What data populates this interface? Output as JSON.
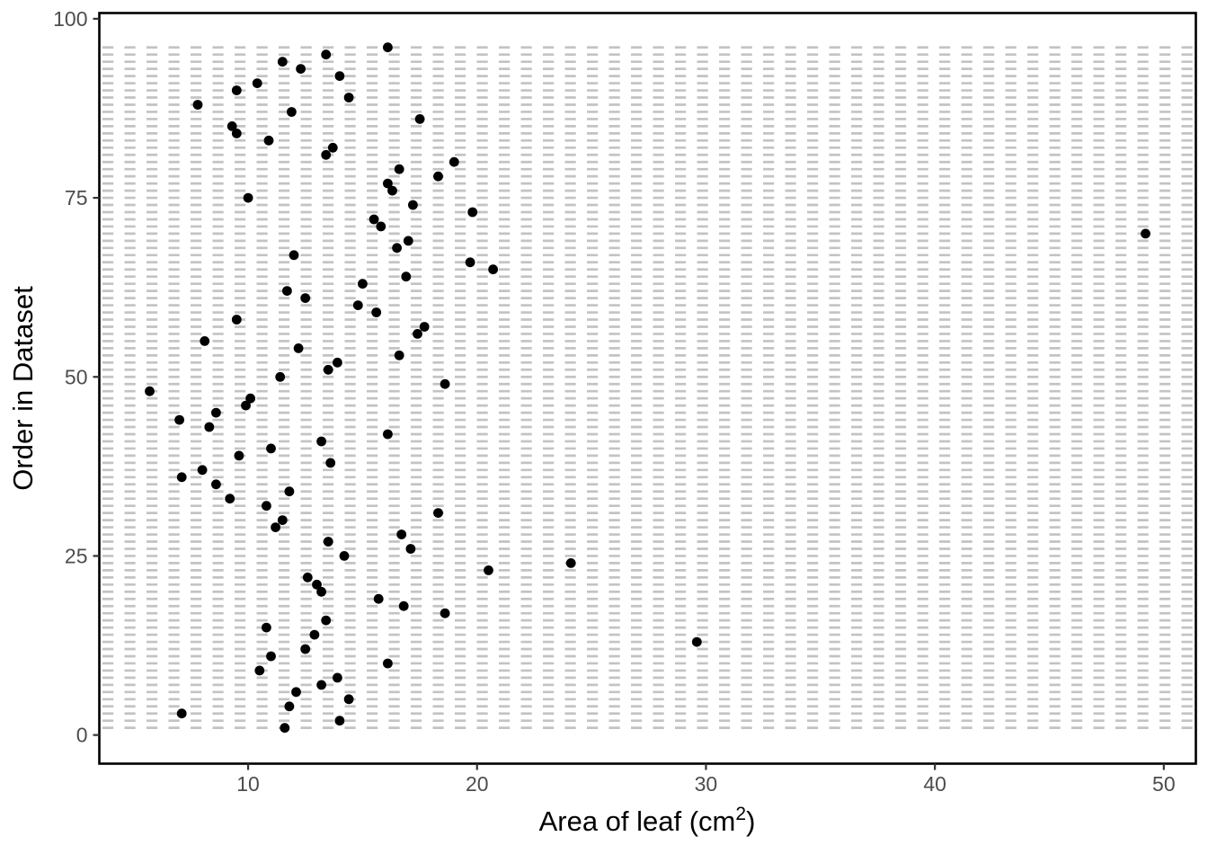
{
  "chart_data": {
    "type": "scatter",
    "title": "",
    "xlabel_prefix": "Area of leaf (cm",
    "xlabel_sup": "2",
    "xlabel_suffix": ")",
    "xlabel_plain": "Area of leaf (cm^2)",
    "ylabel": "Order in Dataset",
    "x_ticks": [
      10,
      20,
      30,
      40,
      50
    ],
    "y_ticks": [
      0,
      25,
      50,
      75,
      100
    ],
    "xlim": [
      3.5,
      51.4
    ],
    "ylim": [
      -4,
      100.8
    ],
    "grid": {
      "style": "dashed",
      "color": "#c3c3c3",
      "rows_y_from": 1,
      "rows_y_to": 96,
      "orientation": "horizontal"
    },
    "legend_position": "none",
    "point_color": "#000000",
    "point_radius": 5.4,
    "axis_text_color": "#4d4d4d",
    "axis_title_color": "#000000",
    "tick_mark_color": "#333333",
    "panel_border_color": "#000000",
    "background_color": "#ffffff",
    "points": [
      [
        11.6,
        1
      ],
      [
        14.0,
        2
      ],
      [
        7.1,
        3
      ],
      [
        11.8,
        4
      ],
      [
        14.4,
        5
      ],
      [
        12.1,
        6
      ],
      [
        13.2,
        7
      ],
      [
        13.9,
        8
      ],
      [
        10.5,
        9
      ],
      [
        16.1,
        10
      ],
      [
        11.0,
        11
      ],
      [
        12.5,
        12
      ],
      [
        29.6,
        13
      ],
      [
        12.9,
        14
      ],
      [
        10.8,
        15
      ],
      [
        13.4,
        16
      ],
      [
        18.6,
        17
      ],
      [
        16.8,
        18
      ],
      [
        15.7,
        19
      ],
      [
        13.2,
        20
      ],
      [
        13.0,
        21
      ],
      [
        12.6,
        22
      ],
      [
        20.5,
        23
      ],
      [
        24.1,
        24
      ],
      [
        14.2,
        25
      ],
      [
        17.1,
        26
      ],
      [
        13.5,
        27
      ],
      [
        16.7,
        28
      ],
      [
        11.2,
        29
      ],
      [
        11.5,
        30
      ],
      [
        18.3,
        31
      ],
      [
        10.8,
        32
      ],
      [
        9.2,
        33
      ],
      [
        11.8,
        34
      ],
      [
        8.6,
        35
      ],
      [
        7.1,
        36
      ],
      [
        8.0,
        37
      ],
      [
        13.6,
        38
      ],
      [
        9.6,
        39
      ],
      [
        11.0,
        40
      ],
      [
        13.2,
        41
      ],
      [
        16.1,
        42
      ],
      [
        8.3,
        43
      ],
      [
        7.0,
        44
      ],
      [
        8.6,
        45
      ],
      [
        9.9,
        46
      ],
      [
        10.1,
        47
      ],
      [
        5.7,
        48
      ],
      [
        18.6,
        49
      ],
      [
        11.4,
        50
      ],
      [
        13.5,
        51
      ],
      [
        13.9,
        52
      ],
      [
        16.6,
        53
      ],
      [
        12.2,
        54
      ],
      [
        8.1,
        55
      ],
      [
        17.4,
        56
      ],
      [
        17.7,
        57
      ],
      [
        9.5,
        58
      ],
      [
        15.6,
        59
      ],
      [
        14.8,
        60
      ],
      [
        12.5,
        61
      ],
      [
        11.7,
        62
      ],
      [
        15.0,
        63
      ],
      [
        16.9,
        64
      ],
      [
        20.7,
        65
      ],
      [
        19.7,
        66
      ],
      [
        12.0,
        67
      ],
      [
        16.5,
        68
      ],
      [
        17.0,
        69
      ],
      [
        49.2,
        70
      ],
      [
        15.8,
        71
      ],
      [
        15.5,
        72
      ],
      [
        19.8,
        73
      ],
      [
        17.2,
        74
      ],
      [
        10.0,
        75
      ],
      [
        16.3,
        76
      ],
      [
        16.1,
        77
      ],
      [
        18.3,
        78
      ],
      [
        16.6,
        79
      ],
      [
        19.0,
        80
      ],
      [
        13.4,
        81
      ],
      [
        13.7,
        82
      ],
      [
        10.9,
        83
      ],
      [
        9.5,
        84
      ],
      [
        9.3,
        85
      ],
      [
        17.5,
        86
      ],
      [
        11.9,
        87
      ],
      [
        7.8,
        88
      ],
      [
        14.4,
        89
      ],
      [
        9.5,
        90
      ],
      [
        10.4,
        91
      ],
      [
        14.0,
        92
      ],
      [
        12.3,
        93
      ],
      [
        11.5,
        94
      ],
      [
        13.4,
        95
      ],
      [
        16.1,
        96
      ]
    ]
  }
}
